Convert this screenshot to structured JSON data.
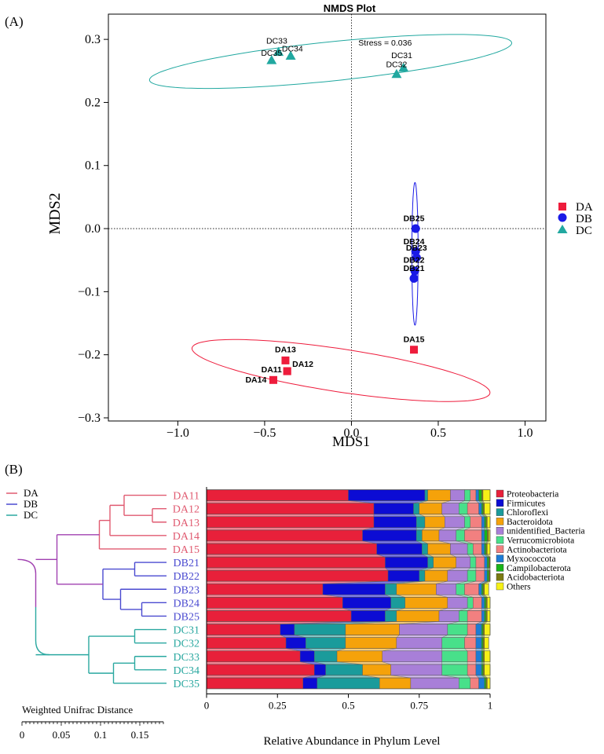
{
  "panel_a_label": "(A)",
  "panel_b_label": "(B)",
  "colors": {
    "DA": "#ee1c3c",
    "DB": "#1a1ae6",
    "DC": "#21a8a0",
    "dend_DA": "#e05a70",
    "dend_DB": "#4a4ad0",
    "dend_DC": "#2aa8a0",
    "dend_root": "#a040b0"
  },
  "chart_data": [
    {
      "type": "scatter",
      "title": "NMDS Plot",
      "xlabel": "MDS1",
      "ylabel": "MDS2",
      "xlim": [
        -1.4,
        1.12
      ],
      "ylim": [
        -0.305,
        0.34
      ],
      "xticks": [
        -1.0,
        -0.5,
        0.0,
        0.5,
        1.0
      ],
      "xtick_labels": [
        "−1.0",
        "−0.5",
        "0.0",
        "0.5",
        "1.0"
      ],
      "yticks": [
        -0.3,
        -0.2,
        -0.1,
        0.0,
        0.1,
        0.2,
        0.3
      ],
      "ytick_labels": [
        "−0.3",
        "−0.2",
        "−0.1",
        "0.0",
        "0.1",
        "0.2",
        "0.3"
      ],
      "annotation": "Stress = 0.036",
      "annotation_pos": [
        0.04,
        0.29
      ],
      "legend": [
        {
          "name": "DA",
          "marker": "square"
        },
        {
          "name": "DB",
          "marker": "circle"
        },
        {
          "name": "DC",
          "marker": "triangle"
        }
      ],
      "series": [
        {
          "name": "DA",
          "points": [
            {
              "label": "DA11",
              "x": -0.37,
              "y": -0.226
            },
            {
              "label": "DA12",
              "x": -0.37,
              "y": -0.226
            },
            {
              "label": "DA13",
              "x": -0.38,
              "y": -0.209
            },
            {
              "label": "DA14",
              "x": -0.45,
              "y": -0.24
            },
            {
              "label": "DA15",
              "x": 0.36,
              "y": -0.192
            }
          ],
          "labels": [
            {
              "text": "DA13",
              "x": -0.38,
              "y": -0.196
            },
            {
              "text": "DA12",
              "x": -0.28,
              "y": -0.219
            },
            {
              "text": "DA11",
              "x": -0.46,
              "y": -0.228
            },
            {
              "text": "DA14",
              "x": -0.55,
              "y": -0.244
            },
            {
              "text": "DA15",
              "x": 0.36,
              "y": -0.18
            }
          ],
          "ellipse": {
            "cx": -0.06,
            "cy": -0.225,
            "rx": 0.87,
            "ry": 0.034,
            "angle_deg": -9.5
          }
        },
        {
          "name": "DB",
          "points": [
            {
              "label": "DB25",
              "x": 0.37,
              "y": 0.0
            },
            {
              "label": "DB24",
              "x": 0.37,
              "y": -0.036
            },
            {
              "label": "DB23",
              "x": 0.375,
              "y": -0.046
            },
            {
              "label": "DB22",
              "x": 0.365,
              "y": -0.067
            },
            {
              "label": "DB21",
              "x": 0.36,
              "y": -0.079
            }
          ],
          "labels": [
            {
              "text": "DB25",
              "x": 0.36,
              "y": 0.012
            },
            {
              "text": "DB24",
              "x": 0.36,
              "y": -0.025
            },
            {
              "text": "DB23",
              "x": 0.375,
              "y": -0.035
            },
            {
              "text": "DB22",
              "x": 0.36,
              "y": -0.054
            },
            {
              "text": "DB21",
              "x": 0.36,
              "y": -0.067
            }
          ],
          "ellipse": {
            "cx": 0.366,
            "cy": -0.04,
            "rx": 0.018,
            "ry": 0.113,
            "angle_deg": 0
          }
        },
        {
          "name": "DC",
          "points": [
            {
              "label": "DC33",
              "x": -0.42,
              "y": 0.28
            },
            {
              "label": "DC34",
              "x": -0.35,
              "y": 0.274
            },
            {
              "label": "DC35",
              "x": -0.46,
              "y": 0.267
            },
            {
              "label": "DC31",
              "x": 0.3,
              "y": 0.255
            },
            {
              "label": "DC32",
              "x": 0.26,
              "y": 0.245
            }
          ],
          "labels": [
            {
              "text": "DC33",
              "x": -0.43,
              "y": 0.293
            },
            {
              "text": "DC34",
              "x": -0.34,
              "y": 0.281
            },
            {
              "text": "DC35",
              "x": -0.46,
              "y": 0.274
            },
            {
              "text": "DC31",
              "x": 0.29,
              "y": 0.27
            },
            {
              "text": "DC32",
              "x": 0.26,
              "y": 0.256
            }
          ],
          "ellipse": {
            "cx": -0.12,
            "cy": 0.265,
            "rx": 1.05,
            "ry": 0.031,
            "angle_deg": 6.5
          }
        }
      ]
    },
    {
      "type": "bar",
      "orientation": "horizontal",
      "stacked": true,
      "xlabel": "Relative Abundance in Phylum Level",
      "xlim": [
        0,
        1
      ],
      "xticks": [
        0,
        0.25,
        0.5,
        0.75,
        1
      ],
      "xtick_labels": [
        "0",
        "0.25",
        "0.5",
        "0.75",
        "1"
      ],
      "categories": [
        "DA11",
        "DA12",
        "DA13",
        "DA14",
        "DA15",
        "DB21",
        "DB22",
        "DB23",
        "DB24",
        "DB25",
        "DC31",
        "DC32",
        "DC33",
        "DC34",
        "DC35"
      ],
      "groups": [
        "DA",
        "DA",
        "DA",
        "DA",
        "DA",
        "DB",
        "DB",
        "DB",
        "DB",
        "DB",
        "DC",
        "DC",
        "DC",
        "DC",
        "DC"
      ],
      "series": [
        {
          "name": "Proteobacteria",
          "color": "#e8203a",
          "values": [
            0.5,
            0.59,
            0.59,
            0.55,
            0.6,
            0.63,
            0.64,
            0.41,
            0.48,
            0.51,
            0.26,
            0.28,
            0.33,
            0.38,
            0.34
          ]
        },
        {
          "name": "Firmicutes",
          "color": "#0c0cd4",
          "values": [
            0.27,
            0.14,
            0.15,
            0.19,
            0.16,
            0.15,
            0.11,
            0.22,
            0.17,
            0.12,
            0.05,
            0.07,
            0.05,
            0.04,
            0.05
          ]
        },
        {
          "name": "Chloroflexi",
          "color": "#1a9b9b",
          "values": [
            0.01,
            0.02,
            0.03,
            0.02,
            0.02,
            0.02,
            0.02,
            0.04,
            0.05,
            0.04,
            0.18,
            0.14,
            0.08,
            0.13,
            0.22
          ]
        },
        {
          "name": "Bacteroidota",
          "color": "#f5a20a",
          "values": [
            0.08,
            0.08,
            0.07,
            0.06,
            0.08,
            0.08,
            0.08,
            0.14,
            0.15,
            0.15,
            0.19,
            0.18,
            0.16,
            0.1,
            0.11
          ]
        },
        {
          "name": "unidentified_Bacteria",
          "color": "#a87fd8",
          "values": [
            0.05,
            0.06,
            0.07,
            0.06,
            0.06,
            0.05,
            0.07,
            0.07,
            0.07,
            0.07,
            0.17,
            0.16,
            0.21,
            0.18,
            0.17
          ]
        },
        {
          "name": "Verrucomicrobiota",
          "color": "#48e08a",
          "values": [
            0.02,
            0.03,
            0.02,
            0.03,
            0.02,
            0.02,
            0.03,
            0.03,
            0.02,
            0.03,
            0.07,
            0.08,
            0.09,
            0.09,
            0.04
          ]
        },
        {
          "name": "Actinobacteriota",
          "color": "#f28080",
          "values": [
            0.02,
            0.04,
            0.04,
            0.06,
            0.03,
            0.03,
            0.03,
            0.05,
            0.03,
            0.05,
            0.03,
            0.04,
            0.03,
            0.03,
            0.03
          ]
        },
        {
          "name": "Myxococcota",
          "color": "#1c7cd6",
          "values": [
            0.01,
            0.01,
            0.01,
            0.01,
            0.01,
            0.01,
            0.01,
            0.01,
            0.01,
            0.01,
            0.02,
            0.02,
            0.02,
            0.02,
            0.02
          ]
        },
        {
          "name": "Campilobacterota",
          "color": "#18b418",
          "values": [
            0.01,
            0.005,
            0.005,
            0.01,
            0.005,
            0.005,
            0.005,
            0.005,
            0.005,
            0.005,
            0.005,
            0.005,
            0.005,
            0.005,
            0.005
          ]
        },
        {
          "name": "Acidobacteriota",
          "color": "#7a7a12",
          "values": [
            0.005,
            0.005,
            0.005,
            0.005,
            0.005,
            0.005,
            0.005,
            0.005,
            0.005,
            0.005,
            0.005,
            0.005,
            0.005,
            0.005,
            0.005
          ]
        },
        {
          "name": "Others",
          "color": "#f5f016",
          "values": [
            0.025,
            0.02,
            0.01,
            0.015,
            0.02,
            0.0,
            0.0,
            0.015,
            0.015,
            0.015,
            0.02,
            0.015,
            0.02,
            0.02,
            0.015
          ]
        }
      ],
      "legend_names": [
        "Proteobacteria",
        "Firmicutes",
        "Chloroflexi",
        "Bacteroidota",
        "unidentified_Bacteria",
        "Verrucomicrobiota",
        "Actinobacteriota",
        "Myxococcota",
        "Campilobacterota",
        "Acidobacteriota",
        "Others"
      ]
    },
    {
      "type": "dendrogram",
      "legend": [
        "DA",
        "DB",
        "DC"
      ],
      "scale_title": "Weighted Unifrac Distance",
      "scale_ticks": [
        0,
        0.05,
        0.1,
        0.15
      ],
      "scale_tick_labels": [
        "0",
        "0.05",
        "0.1",
        "0.15"
      ],
      "leaves": [
        "DA11",
        "DA12",
        "DA13",
        "DA14",
        "DA15",
        "DB21",
        "DB22",
        "DB23",
        "DB24",
        "DB25",
        "DC31",
        "DC32",
        "DC33",
        "DC34",
        "DC35"
      ],
      "merges": [
        {
          "a": "DA12",
          "b": "DA13",
          "height": 0.02,
          "group": "DA"
        },
        {
          "a": "DA11",
          "b": "DA12+DA13",
          "height": 0.06,
          "group": "DA"
        },
        {
          "a": "DA11-13",
          "b": "DA14",
          "height": 0.08,
          "group": "DA"
        },
        {
          "a": "DA11-14",
          "b": "DA15",
          "height": 0.095,
          "group": "DA"
        },
        {
          "a": "DB21",
          "b": "DB22",
          "height": 0.045,
          "group": "DB"
        },
        {
          "a": "DB24",
          "b": "DB25",
          "height": 0.035,
          "group": "DB"
        },
        {
          "a": "DB23",
          "b": "DB24+DB25",
          "height": 0.065,
          "group": "DB"
        },
        {
          "a": "DB21-22",
          "b": "DB23-25",
          "height": 0.09,
          "group": "DB"
        },
        {
          "a": "DA",
          "b": "DB",
          "height": 0.155,
          "group": "root"
        },
        {
          "a": "DC31",
          "b": "DC32",
          "height": 0.045,
          "group": "DC"
        },
        {
          "a": "DC33",
          "b": "DC34",
          "height": 0.045,
          "group": "DC"
        },
        {
          "a": "DC33+DC34",
          "b": "DC35",
          "height": 0.075,
          "group": "DC"
        },
        {
          "a": "DC31-32",
          "b": "DC33-35",
          "height": 0.11,
          "group": "DC"
        },
        {
          "a": "DA+DB",
          "b": "DC",
          "height": 0.185,
          "group": "root"
        }
      ]
    }
  ]
}
